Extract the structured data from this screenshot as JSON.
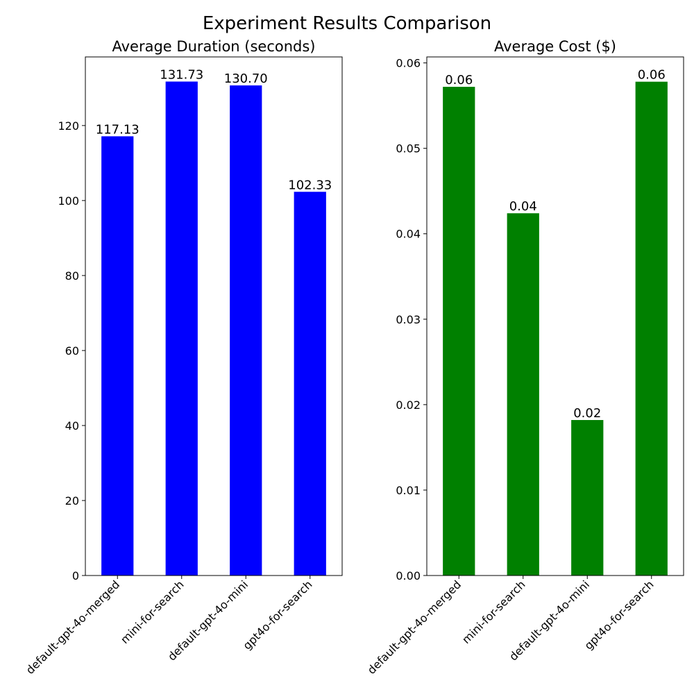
{
  "figure": {
    "title": "Experiment Results Comparison"
  },
  "chart_data": [
    {
      "type": "bar",
      "title": "Average Duration (seconds)",
      "xlabel": "",
      "ylabel": "",
      "categories": [
        "default-gpt-4o-merged",
        "mini-for-search",
        "default-gpt-4o-mini",
        "gpt4o-for-search"
      ],
      "values": [
        117.13,
        131.73,
        130.7,
        102.33
      ],
      "value_labels": [
        "117.13",
        "131.73",
        "130.70",
        "102.33"
      ],
      "yticks": [
        0,
        20,
        40,
        60,
        80,
        100,
        120
      ],
      "ytick_labels": [
        "0",
        "20",
        "40",
        "60",
        "80",
        "100",
        "120"
      ],
      "ylim": [
        0,
        138.3
      ],
      "color": "#0000ff",
      "grid": false,
      "legend": "none"
    },
    {
      "type": "bar",
      "title": "Average Cost ($)",
      "xlabel": "",
      "ylabel": "",
      "categories": [
        "default-gpt-4o-merged",
        "mini-for-search",
        "default-gpt-4o-mini",
        "gpt4o-for-search"
      ],
      "values": [
        0.0572,
        0.0424,
        0.0182,
        0.0578
      ],
      "value_labels": [
        "0.06",
        "0.04",
        "0.02",
        "0.06"
      ],
      "yticks": [
        0,
        0.01,
        0.02,
        0.03,
        0.04,
        0.05,
        0.06
      ],
      "ytick_labels": [
        "0.00",
        "0.01",
        "0.02",
        "0.03",
        "0.04",
        "0.05",
        "0.06"
      ],
      "ylim": [
        0,
        0.0607
      ],
      "color": "#008000",
      "grid": false,
      "legend": "none"
    }
  ]
}
